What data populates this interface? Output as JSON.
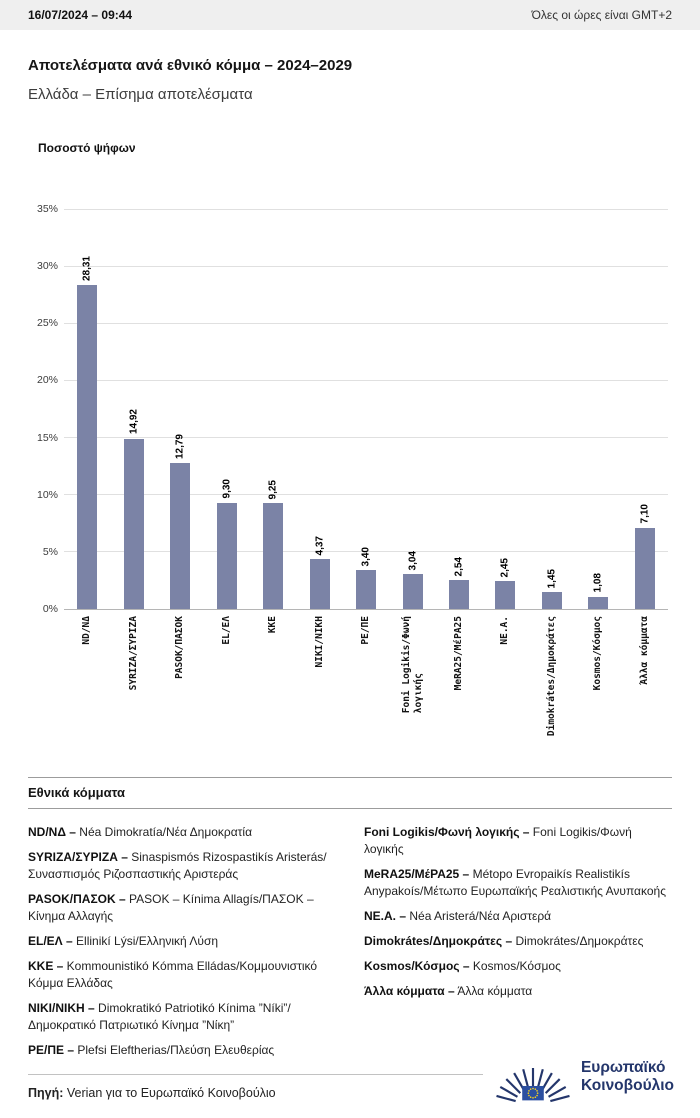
{
  "header": {
    "datetime": "16/07/2024 – 09:44",
    "timezone_note": "Όλες οι ώρες είναι GMT+2"
  },
  "titles": {
    "main": "Αποτελέσματα ανά εθνικό κόμμα – 2024–2029",
    "sub": "Ελλάδα – Επίσημα αποτελέσματα"
  },
  "chart_data": {
    "type": "bar",
    "title": "Ποσοστό ψήφων",
    "xlabel": "",
    "ylabel": "Ποσοστό ψήφων",
    "ylim": [
      0,
      35
    ],
    "grid": true,
    "legend_position": "none",
    "bar_color": "#7B83A6",
    "yticks": [
      "0%",
      "5%",
      "10%",
      "15%",
      "20%",
      "25%",
      "30%",
      "35%"
    ],
    "categories": [
      "ND/ΝΔ",
      "SYRIZA/ΣΥΡΙΖΑ",
      "PASOK/ΠΑΣΟΚ",
      "EL/ΕΛ",
      "KKE",
      "NIKI/ΝΙΚΗ",
      "PE/ΠΕ",
      "Foni Logikis/Φωνή\nλογικής",
      "MeRA25/ΜέΡΑ25",
      "NE.A.",
      "Dimokrátes/Δημοκράτες",
      "Kosmos/Κόσμος",
      "Άλλα κόμματα"
    ],
    "values": [
      28.31,
      14.92,
      12.79,
      9.3,
      9.25,
      4.37,
      3.4,
      3.04,
      2.54,
      2.45,
      1.45,
      1.08,
      7.1
    ],
    "value_labels": [
      "28,31",
      "14,92",
      "12,79",
      "9,30",
      "9,25",
      "4,37",
      "3,40",
      "3,04",
      "2,54",
      "2,45",
      "1,45",
      "1,08",
      "7,10"
    ]
  },
  "legend": {
    "title": "Εθνικά κόμματα",
    "columns": [
      [
        {
          "term": "ND/ΝΔ –",
          "desc": "Néa Dimokratía/Νέα Δημοκρατία"
        },
        {
          "term": "SYRIZA/ΣΥΡΙΖΑ –",
          "desc": "Sinaspismós Rizospastikís Aristerás/Συνασπισμός Ριζοσπαστικής Αριστεράς"
        },
        {
          "term": "PASOK/ΠΑΣΟΚ –",
          "desc": "PASOK – Kínima Allagís/ΠΑΣΟΚ – Κίνημα Αλλαγής"
        },
        {
          "term": "EL/ΕΛ –",
          "desc": "Ellinikí Lýsi/Ελληνική Λύση"
        },
        {
          "term": "KKE –",
          "desc": "Kommounistikó Kómma Elládas/Κομμουνιστικό Κόμμα Ελλάδας"
        },
        {
          "term": "NIKI/ΝΙΚΗ –",
          "desc": "Dimokratikó Patriotikó Kínima ”Níki”/Δημοκρατικό Πατριωτικό Κίνημα ”Νίκη”"
        },
        {
          "term": "PE/ΠΕ –",
          "desc": "Plefsi Eleftherias/Πλεύση Ελευθερίας"
        }
      ],
      [
        {
          "term": "Foni Logikis/Φωνή λογικής –",
          "desc": "Foni Logikis/Φωνή λογικής"
        },
        {
          "term": "MeRA25/ΜέΡΑ25 –",
          "desc": "Métopo Evropaikís Realistikís Anypakoís/Μέτωπο Ευρωπαϊκής Ρεαλιστικής Ανυπακοής"
        },
        {
          "term": "NE.A. –",
          "desc": "Néa Aristerá/Νέα Αριστερά"
        },
        {
          "term": "Dimokrátes/Δημοκράτες –",
          "desc": "Dimokrátes/Δημοκράτες"
        },
        {
          "term": "Kosmos/Κόσμος –",
          "desc": "Kosmos/Κόσμος"
        },
        {
          "term": "Άλλα κόμματα –",
          "desc": "Άλλα κόμματα"
        }
      ]
    ]
  },
  "footer": {
    "source_label": "Πηγή:",
    "source_text": " Verian για το Ευρωπαϊκό Κοινοβούλιο",
    "logo_text_line1": "Ευρωπαϊκό",
    "logo_text_line2": "Κοινοβούλιο",
    "colors": {
      "ep_navy": "#24366b",
      "eu_flag_blue": "#2b4fa0",
      "eu_star_yellow": "#ffd617"
    }
  }
}
